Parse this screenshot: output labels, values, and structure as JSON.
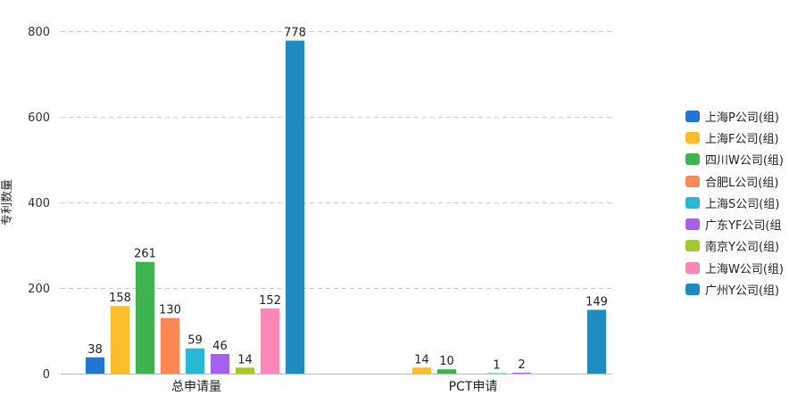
{
  "chart_data": {
    "type": "bar",
    "title": "",
    "xlabel": "",
    "ylabel": "专利数量",
    "ylim": [
      0,
      800
    ],
    "yticks": [
      0,
      200,
      400,
      600,
      800
    ],
    "grid": true,
    "legend_position": "right",
    "categories": [
      "总申请量",
      "PCT申请"
    ],
    "series": [
      {
        "name": "上海P公司(组)",
        "color": "#2176d2",
        "values": [
          38,
          null
        ]
      },
      {
        "name": "上海F公司(组)",
        "color": "#fbbd2a",
        "values": [
          158,
          14
        ]
      },
      {
        "name": "四川W公司(组)",
        "color": "#3fb34f",
        "values": [
          261,
          10
        ]
      },
      {
        "name": "合肥L公司(组)",
        "color": "#fe8753",
        "values": [
          130,
          null
        ]
      },
      {
        "name": "上海S公司(组)",
        "color": "#29b7d6",
        "values": [
          59,
          1
        ]
      },
      {
        "name": "广东YF公司(组",
        "color": "#a660f0",
        "values": [
          46,
          2
        ]
      },
      {
        "name": "南京Y公司(组)",
        "color": "#a5c82a",
        "values": [
          14,
          null
        ]
      },
      {
        "name": "上海W公司(组)",
        "color": "#fa87b6",
        "values": [
          152,
          null
        ]
      },
      {
        "name": "广州Y公司(组)",
        "color": "#1f8cbf",
        "values": [
          778,
          149
        ]
      }
    ]
  }
}
